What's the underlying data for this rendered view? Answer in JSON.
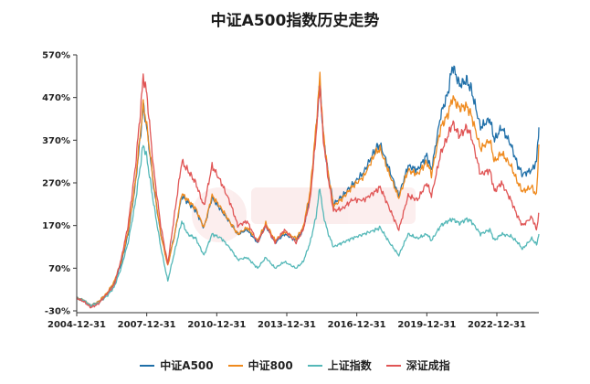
{
  "chart_data": {
    "type": "line",
    "title": "中证A500指数历史走势",
    "xlabel": "",
    "ylabel": "",
    "x_tick_labels": [
      "2004-12-31",
      "2007-12-31",
      "2010-12-31",
      "2013-12-31",
      "2016-12-31",
      "2019-12-31",
      "2022-12-31"
    ],
    "x_tick_years": [
      2005,
      2008,
      2011,
      2014,
      2017,
      2020,
      2023
    ],
    "x_range": [
      2005,
      2024.8
    ],
    "y_tick_labels": [
      "-30%",
      "70%",
      "170%",
      "270%",
      "370%",
      "470%",
      "570%"
    ],
    "y_ticks": [
      -30,
      70,
      170,
      270,
      370,
      470,
      570
    ],
    "ylim": [
      -30,
      570
    ],
    "grid": false,
    "legend_position": "bottom",
    "series": [
      {
        "name": "中证A500",
        "color": "#1f6fa8",
        "points": [
          [
            2005.0,
            0
          ],
          [
            2005.3,
            -5
          ],
          [
            2005.6,
            -18
          ],
          [
            2005.9,
            -10
          ],
          [
            2006.3,
            10
          ],
          [
            2006.6,
            35
          ],
          [
            2006.9,
            80
          ],
          [
            2007.2,
            150
          ],
          [
            2007.5,
            260
          ],
          [
            2007.75,
            390
          ],
          [
            2007.85,
            450
          ],
          [
            2008.0,
            400
          ],
          [
            2008.3,
            260
          ],
          [
            2008.6,
            150
          ],
          [
            2008.9,
            80
          ],
          [
            2009.2,
            150
          ],
          [
            2009.5,
            240
          ],
          [
            2009.75,
            225
          ],
          [
            2010.1,
            205
          ],
          [
            2010.45,
            165
          ],
          [
            2010.8,
            235
          ],
          [
            2011.2,
            205
          ],
          [
            2011.6,
            175
          ],
          [
            2011.9,
            150
          ],
          [
            2012.3,
            160
          ],
          [
            2012.75,
            130
          ],
          [
            2013.1,
            170
          ],
          [
            2013.5,
            130
          ],
          [
            2013.9,
            150
          ],
          [
            2014.4,
            135
          ],
          [
            2014.7,
            160
          ],
          [
            2015.0,
            240
          ],
          [
            2015.25,
            390
          ],
          [
            2015.42,
            510
          ],
          [
            2015.55,
            390
          ],
          [
            2015.75,
            300
          ],
          [
            2016.0,
            220
          ],
          [
            2016.4,
            240
          ],
          [
            2016.8,
            265
          ],
          [
            2017.3,
            295
          ],
          [
            2017.8,
            350
          ],
          [
            2018.0,
            360
          ],
          [
            2018.4,
            300
          ],
          [
            2018.8,
            240
          ],
          [
            2019.2,
            310
          ],
          [
            2019.6,
            300
          ],
          [
            2020.0,
            335
          ],
          [
            2020.2,
            300
          ],
          [
            2020.6,
            430
          ],
          [
            2020.9,
            480
          ],
          [
            2021.1,
            545
          ],
          [
            2021.4,
            500
          ],
          [
            2021.7,
            510
          ],
          [
            2021.9,
            490
          ],
          [
            2022.3,
            400
          ],
          [
            2022.7,
            420
          ],
          [
            2022.9,
            370
          ],
          [
            2023.2,
            400
          ],
          [
            2023.6,
            360
          ],
          [
            2023.9,
            310
          ],
          [
            2024.1,
            290
          ],
          [
            2024.5,
            300
          ],
          [
            2024.7,
            320
          ],
          [
            2024.8,
            400
          ]
        ]
      },
      {
        "name": "中证800",
        "color": "#ef8a1e",
        "points": [
          [
            2005.0,
            0
          ],
          [
            2005.3,
            -5
          ],
          [
            2005.6,
            -18
          ],
          [
            2005.9,
            -10
          ],
          [
            2006.3,
            12
          ],
          [
            2006.6,
            38
          ],
          [
            2006.9,
            85
          ],
          [
            2007.2,
            155
          ],
          [
            2007.5,
            265
          ],
          [
            2007.75,
            400
          ],
          [
            2007.85,
            455
          ],
          [
            2008.0,
            405
          ],
          [
            2008.3,
            265
          ],
          [
            2008.6,
            150
          ],
          [
            2008.9,
            75
          ],
          [
            2009.2,
            150
          ],
          [
            2009.5,
            245
          ],
          [
            2009.75,
            230
          ],
          [
            2010.1,
            210
          ],
          [
            2010.45,
            165
          ],
          [
            2010.8,
            240
          ],
          [
            2011.2,
            210
          ],
          [
            2011.6,
            175
          ],
          [
            2011.9,
            150
          ],
          [
            2012.3,
            165
          ],
          [
            2012.75,
            135
          ],
          [
            2013.1,
            175
          ],
          [
            2013.5,
            135
          ],
          [
            2013.9,
            155
          ],
          [
            2014.4,
            140
          ],
          [
            2014.7,
            165
          ],
          [
            2015.0,
            250
          ],
          [
            2015.25,
            400
          ],
          [
            2015.42,
            520
          ],
          [
            2015.55,
            395
          ],
          [
            2015.75,
            300
          ],
          [
            2016.0,
            215
          ],
          [
            2016.4,
            235
          ],
          [
            2016.8,
            260
          ],
          [
            2017.3,
            285
          ],
          [
            2017.8,
            340
          ],
          [
            2018.0,
            350
          ],
          [
            2018.4,
            290
          ],
          [
            2018.8,
            235
          ],
          [
            2019.2,
            300
          ],
          [
            2019.6,
            290
          ],
          [
            2020.0,
            320
          ],
          [
            2020.2,
            290
          ],
          [
            2020.6,
            400
          ],
          [
            2020.9,
            430
          ],
          [
            2021.1,
            470
          ],
          [
            2021.4,
            445
          ],
          [
            2021.7,
            450
          ],
          [
            2021.9,
            430
          ],
          [
            2022.3,
            350
          ],
          [
            2022.7,
            370
          ],
          [
            2022.9,
            320
          ],
          [
            2023.2,
            340
          ],
          [
            2023.6,
            310
          ],
          [
            2023.9,
            270
          ],
          [
            2024.1,
            250
          ],
          [
            2024.5,
            260
          ],
          [
            2024.7,
            240
          ],
          [
            2024.8,
            360
          ]
        ]
      },
      {
        "name": "上证指数",
        "color": "#55b8b8",
        "points": [
          [
            2005.0,
            0
          ],
          [
            2005.3,
            -5
          ],
          [
            2005.6,
            -18
          ],
          [
            2005.9,
            -12
          ],
          [
            2006.3,
            5
          ],
          [
            2006.6,
            25
          ],
          [
            2006.9,
            70
          ],
          [
            2007.2,
            130
          ],
          [
            2007.5,
            220
          ],
          [
            2007.75,
            320
          ],
          [
            2007.85,
            360
          ],
          [
            2008.0,
            330
          ],
          [
            2008.3,
            220
          ],
          [
            2008.6,
            120
          ],
          [
            2008.9,
            40
          ],
          [
            2009.2,
            110
          ],
          [
            2009.5,
            180
          ],
          [
            2009.75,
            150
          ],
          [
            2010.1,
            140
          ],
          [
            2010.45,
            100
          ],
          [
            2010.8,
            150
          ],
          [
            2011.2,
            140
          ],
          [
            2011.6,
            115
          ],
          [
            2011.9,
            90
          ],
          [
            2012.3,
            95
          ],
          [
            2012.75,
            70
          ],
          [
            2013.1,
            95
          ],
          [
            2013.5,
            70
          ],
          [
            2013.9,
            85
          ],
          [
            2014.4,
            70
          ],
          [
            2014.7,
            85
          ],
          [
            2015.0,
            130
          ],
          [
            2015.25,
            190
          ],
          [
            2015.42,
            260
          ],
          [
            2015.55,
            200
          ],
          [
            2015.75,
            155
          ],
          [
            2016.0,
            120
          ],
          [
            2016.4,
            130
          ],
          [
            2016.8,
            140
          ],
          [
            2017.3,
            150
          ],
          [
            2017.8,
            160
          ],
          [
            2018.0,
            165
          ],
          [
            2018.4,
            130
          ],
          [
            2018.8,
            100
          ],
          [
            2019.2,
            150
          ],
          [
            2019.6,
            140
          ],
          [
            2020.0,
            150
          ],
          [
            2020.2,
            135
          ],
          [
            2020.6,
            170
          ],
          [
            2020.9,
            180
          ],
          [
            2021.1,
            185
          ],
          [
            2021.4,
            175
          ],
          [
            2021.7,
            185
          ],
          [
            2021.9,
            180
          ],
          [
            2022.3,
            150
          ],
          [
            2022.7,
            160
          ],
          [
            2022.9,
            135
          ],
          [
            2023.2,
            150
          ],
          [
            2023.6,
            145
          ],
          [
            2023.9,
            130
          ],
          [
            2024.1,
            115
          ],
          [
            2024.5,
            140
          ],
          [
            2024.7,
            125
          ],
          [
            2024.8,
            150
          ]
        ]
      },
      {
        "name": "深证成指",
        "color": "#e05555",
        "points": [
          [
            2005.0,
            0
          ],
          [
            2005.3,
            -8
          ],
          [
            2005.6,
            -22
          ],
          [
            2005.9,
            -15
          ],
          [
            2006.3,
            10
          ],
          [
            2006.6,
            30
          ],
          [
            2006.9,
            90
          ],
          [
            2007.2,
            170
          ],
          [
            2007.5,
            300
          ],
          [
            2007.75,
            450
          ],
          [
            2007.85,
            520
          ],
          [
            2008.0,
            480
          ],
          [
            2008.3,
            300
          ],
          [
            2008.6,
            170
          ],
          [
            2008.9,
            80
          ],
          [
            2009.2,
            200
          ],
          [
            2009.5,
            320
          ],
          [
            2009.75,
            300
          ],
          [
            2010.1,
            270
          ],
          [
            2010.45,
            215
          ],
          [
            2010.8,
            310
          ],
          [
            2011.2,
            270
          ],
          [
            2011.6,
            220
          ],
          [
            2011.9,
            170
          ],
          [
            2012.3,
            180
          ],
          [
            2012.75,
            130
          ],
          [
            2013.1,
            170
          ],
          [
            2013.5,
            130
          ],
          [
            2013.9,
            160
          ],
          [
            2014.4,
            130
          ],
          [
            2014.7,
            160
          ],
          [
            2015.0,
            230
          ],
          [
            2015.25,
            380
          ],
          [
            2015.42,
            500
          ],
          [
            2015.55,
            380
          ],
          [
            2015.75,
            290
          ],
          [
            2016.0,
            205
          ],
          [
            2016.4,
            210
          ],
          [
            2016.8,
            230
          ],
          [
            2017.3,
            230
          ],
          [
            2017.8,
            250
          ],
          [
            2018.0,
            260
          ],
          [
            2018.4,
            210
          ],
          [
            2018.8,
            160
          ],
          [
            2019.2,
            240
          ],
          [
            2019.6,
            230
          ],
          [
            2020.0,
            270
          ],
          [
            2020.2,
            240
          ],
          [
            2020.6,
            340
          ],
          [
            2020.9,
            380
          ],
          [
            2021.1,
            410
          ],
          [
            2021.4,
            380
          ],
          [
            2021.7,
            400
          ],
          [
            2021.9,
            380
          ],
          [
            2022.3,
            290
          ],
          [
            2022.7,
            300
          ],
          [
            2022.9,
            250
          ],
          [
            2023.2,
            270
          ],
          [
            2023.6,
            230
          ],
          [
            2023.9,
            190
          ],
          [
            2024.1,
            170
          ],
          [
            2024.5,
            190
          ],
          [
            2024.7,
            160
          ],
          [
            2024.8,
            200
          ]
        ]
      }
    ]
  }
}
